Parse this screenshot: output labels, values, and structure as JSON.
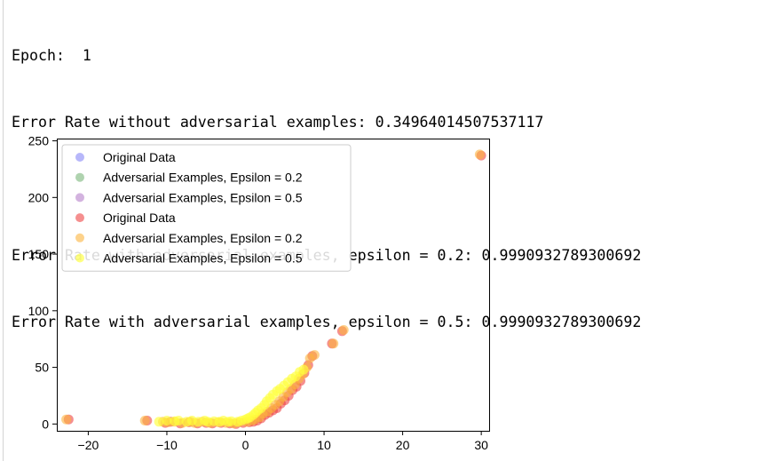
{
  "output": {
    "lines": [
      "Epoch:  1",
      "Error Rate without adversarial examples: 0.34964014507537117",
      "",
      "Error Rate with adversarial examples, epsilon = 0.2: 0.9990932789300692",
      "Error Rate with adversarial examples, epsilon = 0.5: 0.9990932789300692"
    ]
  },
  "chart_data": {
    "type": "scatter",
    "title": "",
    "xlabel": "",
    "ylabel": "",
    "xlim": [
      -24,
      31
    ],
    "ylim": [
      -6,
      252
    ],
    "x_ticks": [
      -20,
      -10,
      0,
      10,
      20,
      30
    ],
    "y_ticks": [
      0,
      50,
      100,
      150,
      200,
      250
    ],
    "x_tick_labels": [
      "−20",
      "−10",
      "0",
      "10",
      "20",
      "30"
    ],
    "y_tick_labels": [
      "0",
      "50",
      "100",
      "150",
      "200",
      "250"
    ],
    "grid": false,
    "legend_position": "upper left",
    "series": [
      {
        "name": "Original Data",
        "color": "#6f6ff5",
        "alpha": 0.5,
        "points": []
      },
      {
        "name": "Adversarial Examples, Epsilon = 0.2",
        "color": "#5fa85f",
        "alpha": 0.5,
        "points": []
      },
      {
        "name": "Adversarial Examples, Epsilon = 0.5",
        "color": "#a868c0",
        "alpha": 0.5,
        "points": []
      },
      {
        "name": "Original Data",
        "color": "#ee4444",
        "alpha": 0.6,
        "points": [
          [
            -22.5,
            4
          ],
          [
            -12.5,
            3
          ],
          [
            -10.2,
            1
          ],
          [
            -9.5,
            2
          ],
          [
            -8.3,
            0.5
          ],
          [
            -7.2,
            1.5
          ],
          [
            -6.1,
            0.5
          ],
          [
            -5.0,
            1
          ],
          [
            -4.2,
            0.5
          ],
          [
            -3.1,
            1
          ],
          [
            -2.0,
            0.5
          ],
          [
            -1.2,
            0
          ],
          [
            -0.3,
            1
          ],
          [
            0.5,
            1.5
          ],
          [
            1.0,
            2
          ],
          [
            1.5,
            3
          ],
          [
            2.0,
            5
          ],
          [
            2.5,
            8
          ],
          [
            3.0,
            10
          ],
          [
            3.5,
            12
          ],
          [
            4.0,
            14
          ],
          [
            4.5,
            18
          ],
          [
            5.0,
            21
          ],
          [
            5.5,
            25
          ],
          [
            6.0,
            30
          ],
          [
            6.5,
            33
          ],
          [
            7.0,
            38
          ],
          [
            7.5,
            45
          ],
          [
            8.0,
            52
          ],
          [
            8.5,
            60
          ],
          [
            11.0,
            71
          ],
          [
            12.3,
            82
          ],
          [
            30.0,
            237
          ]
        ]
      },
      {
        "name": "Adversarial Examples, Epsilon = 0.2",
        "color": "#fcb43e",
        "alpha": 0.6,
        "points": [
          [
            -22.8,
            4
          ],
          [
            -12.8,
            3
          ],
          [
            -10.5,
            2
          ],
          [
            -9.8,
            1.5
          ],
          [
            -9.0,
            2
          ],
          [
            -8.0,
            1
          ],
          [
            -7.0,
            2
          ],
          [
            -6.5,
            1
          ],
          [
            -5.5,
            2
          ],
          [
            -4.5,
            1
          ],
          [
            -3.5,
            1.5
          ],
          [
            -2.5,
            1
          ],
          [
            -1.5,
            0.5
          ],
          [
            -0.8,
            1.5
          ],
          [
            0.2,
            2
          ],
          [
            0.8,
            3
          ],
          [
            1.2,
            4
          ],
          [
            1.8,
            6
          ],
          [
            2.2,
            9
          ],
          [
            2.8,
            11
          ],
          [
            3.3,
            14
          ],
          [
            3.8,
            17
          ],
          [
            4.3,
            20
          ],
          [
            4.8,
            24
          ],
          [
            5.3,
            28
          ],
          [
            5.8,
            31
          ],
          [
            6.3,
            35
          ],
          [
            6.8,
            40
          ],
          [
            7.3,
            44
          ],
          [
            7.8,
            50
          ],
          [
            8.2,
            58
          ],
          [
            8.8,
            61
          ],
          [
            11.2,
            71
          ],
          [
            12.5,
            83
          ],
          [
            29.8,
            238
          ]
        ]
      },
      {
        "name": "Adversarial Examples, Epsilon = 0.5",
        "color": "#ffff3c",
        "alpha": 0.65,
        "points": [
          [
            -11.0,
            2
          ],
          [
            -10.0,
            3
          ],
          [
            -9.0,
            2.5
          ],
          [
            -8.5,
            3
          ],
          [
            -7.5,
            2
          ],
          [
            -6.8,
            3
          ],
          [
            -6.0,
            2
          ],
          [
            -5.2,
            3
          ],
          [
            -4.8,
            2
          ],
          [
            -4.0,
            2.5
          ],
          [
            -3.3,
            2
          ],
          [
            -2.8,
            3
          ],
          [
            -2.2,
            2
          ],
          [
            -1.8,
            2.5
          ],
          [
            -1.0,
            2
          ],
          [
            -0.5,
            3
          ],
          [
            0.0,
            4
          ],
          [
            0.3,
            5
          ],
          [
            0.6,
            6
          ],
          [
            1.0,
            8
          ],
          [
            1.3,
            10
          ],
          [
            1.6,
            12
          ],
          [
            2.0,
            14
          ],
          [
            2.4,
            17
          ],
          [
            2.7,
            20
          ],
          [
            3.1,
            23
          ],
          [
            3.5,
            26
          ],
          [
            4.0,
            29
          ],
          [
            4.4,
            31
          ],
          [
            4.9,
            34
          ],
          [
            5.4,
            37
          ],
          [
            5.9,
            40
          ],
          [
            6.4,
            42
          ],
          [
            6.9,
            46
          ],
          [
            7.4,
            48
          ]
        ]
      }
    ]
  }
}
